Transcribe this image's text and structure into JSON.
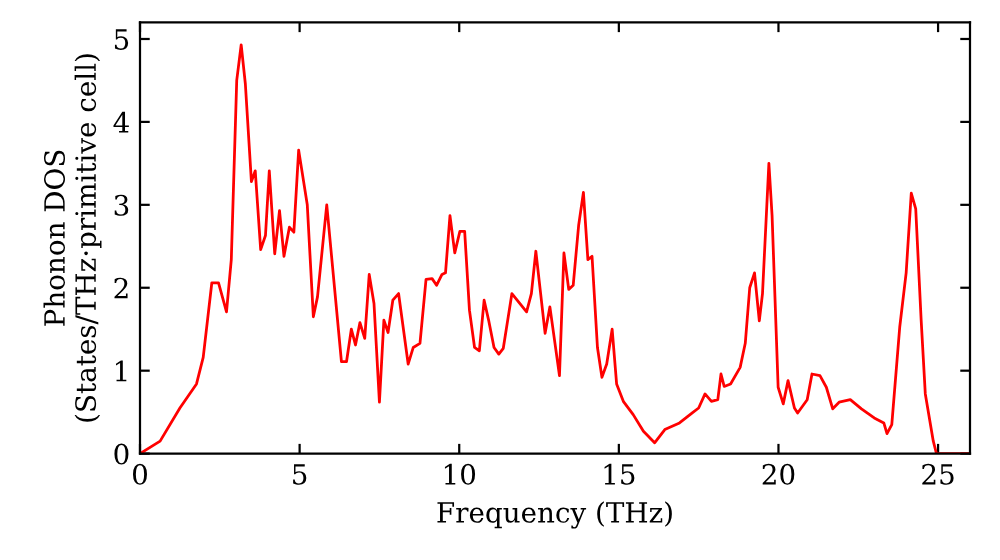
{
  "chart_data": {
    "type": "line",
    "xlabel": "Frequency (THz)",
    "ylabel": "Phonon DOS\n(States/THz·primitive cell)",
    "xlim": [
      0,
      26
    ],
    "ylim": [
      0,
      5.2
    ],
    "xticks": [
      0,
      5,
      10,
      15,
      20,
      25
    ],
    "yticks": [
      0,
      1,
      2,
      3,
      4,
      5
    ],
    "grid": false,
    "legend": false,
    "marker": "none",
    "line_style": "solid",
    "series": [
      {
        "color": "#ff0000",
        "x": [
          0,
          0.63,
          1.25,
          1.77,
          1.98,
          2.25,
          2.46,
          2.71,
          2.86,
          3.03,
          3.17,
          3.3,
          3.49,
          3.61,
          3.78,
          3.93,
          4.05,
          4.22,
          4.37,
          4.51,
          4.68,
          4.82,
          4.97,
          5.24,
          5.43,
          5.56,
          5.85,
          6.31,
          6.47,
          6.62,
          6.75,
          6.89,
          7.04,
          7.18,
          7.33,
          7.5,
          7.64,
          7.77,
          7.92,
          8.1,
          8.4,
          8.56,
          8.77,
          8.96,
          9.15,
          9.29,
          9.46,
          9.57,
          9.71,
          9.86,
          10.02,
          10.17,
          10.32,
          10.48,
          10.63,
          10.78,
          10.92,
          11.09,
          11.24,
          11.38,
          11.65,
          12.11,
          12.26,
          12.4,
          12.55,
          12.69,
          12.84,
          13.14,
          13.28,
          13.43,
          13.57,
          13.74,
          13.89,
          14.03,
          14.16,
          14.33,
          14.47,
          14.62,
          14.79,
          14.93,
          15.14,
          15.45,
          15.77,
          16.12,
          16.44,
          16.9,
          17.3,
          17.5,
          17.7,
          17.9,
          18.1,
          18.2,
          18.3,
          18.5,
          18.8,
          18.96,
          19.1,
          19.25,
          19.4,
          19.5,
          19.7,
          19.8,
          19.99,
          20.15,
          20.3,
          20.5,
          20.6,
          20.9,
          21.05,
          21.3,
          21.5,
          21.7,
          21.9,
          22.25,
          22.6,
          23.0,
          23.3,
          23.4,
          23.55,
          23.8,
          24.0,
          24.16,
          24.3,
          24.47,
          24.6,
          24.85,
          24.95,
          26.0
        ],
        "values": [
          0,
          0.15,
          0.55,
          0.84,
          1.16,
          2.06,
          2.06,
          1.71,
          2.34,
          4.5,
          4.93,
          4.46,
          3.28,
          3.41,
          2.46,
          2.63,
          3.41,
          2.41,
          2.93,
          2.38,
          2.73,
          2.67,
          3.66,
          3.0,
          1.65,
          1.89,
          3.0,
          1.11,
          1.11,
          1.5,
          1.31,
          1.58,
          1.39,
          2.16,
          1.81,
          0.62,
          1.61,
          1.46,
          1.85,
          1.93,
          1.08,
          1.28,
          1.33,
          2.1,
          2.11,
          2.03,
          2.16,
          2.18,
          2.87,
          2.42,
          2.68,
          2.68,
          1.73,
          1.28,
          1.24,
          1.85,
          1.61,
          1.28,
          1.2,
          1.27,
          1.93,
          1.71,
          1.93,
          2.44,
          1.93,
          1.45,
          1.77,
          0.94,
          2.42,
          1.98,
          2.03,
          2.75,
          3.15,
          2.34,
          2.38,
          1.28,
          0.92,
          1.08,
          1.5,
          0.84,
          0.63,
          0.47,
          0.27,
          0.13,
          0.29,
          0.37,
          0.49,
          0.55,
          0.72,
          0.63,
          0.65,
          0.96,
          0.81,
          0.84,
          1.04,
          1.33,
          2.0,
          2.18,
          1.6,
          1.93,
          3.5,
          2.87,
          0.8,
          0.6,
          0.88,
          0.55,
          0.49,
          0.65,
          0.96,
          0.94,
          0.8,
          0.54,
          0.62,
          0.65,
          0.54,
          0.43,
          0.37,
          0.24,
          0.35,
          1.53,
          2.18,
          3.14,
          2.95,
          1.61,
          0.72,
          0.15,
          0,
          0
        ]
      }
    ]
  }
}
